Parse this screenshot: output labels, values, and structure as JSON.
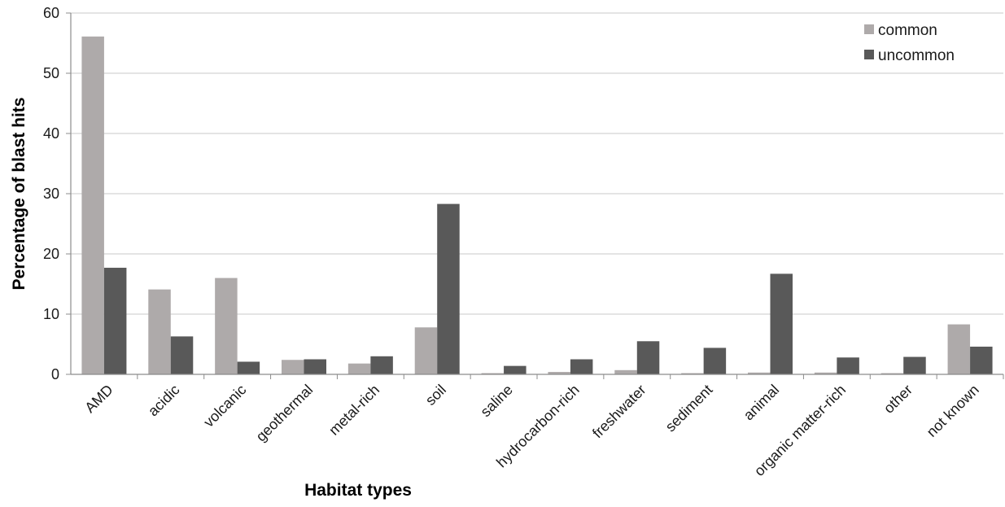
{
  "chart_data": {
    "type": "bar",
    "title": "",
    "xlabel": "Habitat types",
    "ylabel": "Percentage of blast hits",
    "ylim": [
      0,
      60
    ],
    "yticks": [
      0,
      10,
      20,
      30,
      40,
      50,
      60
    ],
    "grid": true,
    "legend_position": "top-right",
    "categories": [
      "AMD",
      "acidic",
      "volcanic",
      "geothermal",
      "metal-rich",
      "soil",
      "saline",
      "hydrocarbon-rich",
      "freshwater",
      "sediment",
      "animal",
      "organic matter-rich",
      "other",
      "not known"
    ],
    "series": [
      {
        "name": "common",
        "color": "#aeaaaa",
        "values": [
          56.1,
          14.1,
          16.0,
          2.4,
          1.8,
          7.8,
          0.2,
          0.4,
          0.7,
          0.2,
          0.3,
          0.3,
          0.2,
          8.3
        ]
      },
      {
        "name": "uncommon",
        "color": "#595959",
        "values": [
          17.7,
          6.3,
          2.1,
          2.5,
          3.0,
          28.3,
          1.4,
          2.5,
          5.5,
          4.4,
          16.7,
          2.8,
          2.9,
          4.6
        ]
      }
    ]
  }
}
